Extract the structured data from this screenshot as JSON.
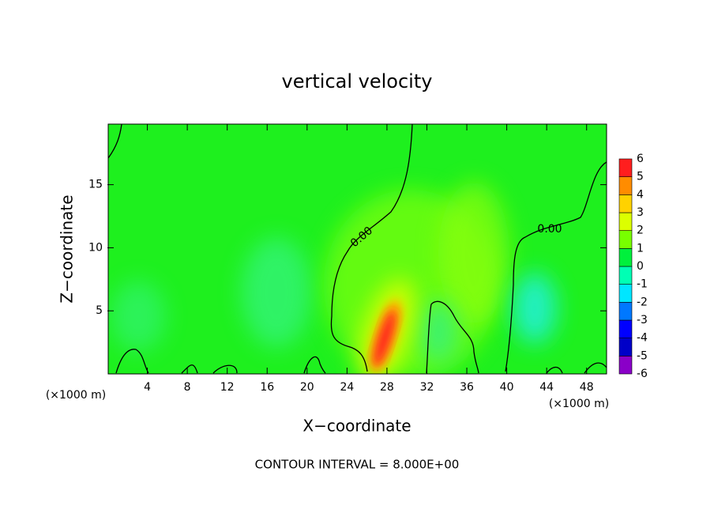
{
  "chart_data": {
    "type": "contour",
    "title": "vertical velocity",
    "x_label": "X−coordinate",
    "y_label": "Z−coordinate",
    "x_unit_label": "(×1000 m)",
    "y_unit_label": "(×1000 m)",
    "footer": "CONTOUR INTERVAL = 8.000E+00",
    "contour_labels": [
      "0.00",
      "0.00"
    ],
    "xlim": [
      0,
      50
    ],
    "xticks": [
      4,
      8,
      12,
      16,
      20,
      24,
      28,
      32,
      36,
      40,
      44,
      48
    ],
    "ylim": [
      0,
      19.8
    ],
    "yticks": [
      5,
      10,
      15
    ],
    "colorbar": {
      "levels": [
        -6,
        -5,
        -4,
        -3,
        -2,
        -1,
        0,
        1,
        2,
        3,
        4,
        5,
        6
      ],
      "colors": [
        "#8a00c8",
        "#0000c8",
        "#0000ff",
        "#0078ff",
        "#00e6ff",
        "#00ffb4",
        "#00f03c",
        "#78ff00",
        "#dcff00",
        "#ffd200",
        "#ff8c00",
        "#ff1e1e",
        "#f59696"
      ]
    }
  }
}
